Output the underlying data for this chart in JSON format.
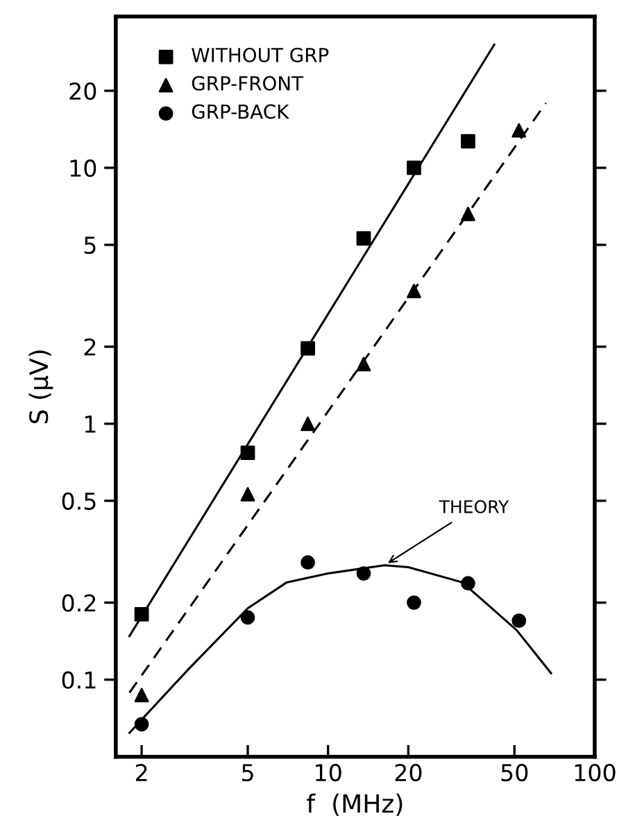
{
  "chart_data": {
    "type": "scatter",
    "xlabel": "f  (MHz)",
    "ylabel": "S (μV)",
    "log": "xy",
    "xlim": [
      1.6,
      100
    ],
    "ylim": [
      0.05,
      39
    ],
    "xticks": [
      2,
      5,
      10,
      20,
      50,
      100
    ],
    "yticks": [
      0.1,
      0.2,
      0.5,
      1,
      2,
      5,
      10,
      20
    ],
    "grid": false,
    "legend": "top left",
    "series": [
      {
        "name": "WITHOUT GRP",
        "marker": "square",
        "color": "#000000",
        "x": [
          2,
          5,
          8.4,
          13.6,
          21,
          33.5
        ],
        "values": [
          0.18,
          0.77,
          1.97,
          5.3,
          10,
          12.7
        ]
      },
      {
        "name": "GRP-FRONT",
        "marker": "triangle",
        "color": "#000000",
        "x": [
          2,
          5,
          8.4,
          13.6,
          21,
          33.5,
          52
        ],
        "values": [
          0.087,
          0.53,
          1.0,
          1.71,
          3.3,
          6.6,
          14
        ]
      },
      {
        "name": "GRP-BACK",
        "marker": "circle",
        "color": "#000000",
        "x": [
          2,
          5,
          8.4,
          13.6,
          21,
          33.5,
          52
        ],
        "values": [
          0.067,
          0.175,
          0.287,
          0.26,
          0.2,
          0.238,
          0.17
        ]
      },
      {
        "type": "line",
        "line_style": "solid",
        "color": "#000000",
        "x": [
          1.8,
          42
        ],
        "values": [
          0.148,
          30.3
        ]
      },
      {
        "type": "line",
        "line_style": "dashed",
        "color": "#000000",
        "x": [
          1.8,
          65.6
        ],
        "values": [
          0.089,
          17.9
        ]
      },
      {
        "type": "line",
        "line_style": "solid",
        "color": "#000000",
        "x": [
          1.8,
          3,
          5,
          7,
          10,
          16.3,
          20,
          31.9,
          51,
          68.6
        ],
        "values": [
          0.062,
          0.11,
          0.19,
          0.24,
          0.26,
          0.28,
          0.275,
          0.24,
          0.156,
          0.106
        ]
      }
    ],
    "annotations": [
      {
        "text": "THEORY",
        "x": 16.3,
        "y": 0.28
      }
    ]
  }
}
